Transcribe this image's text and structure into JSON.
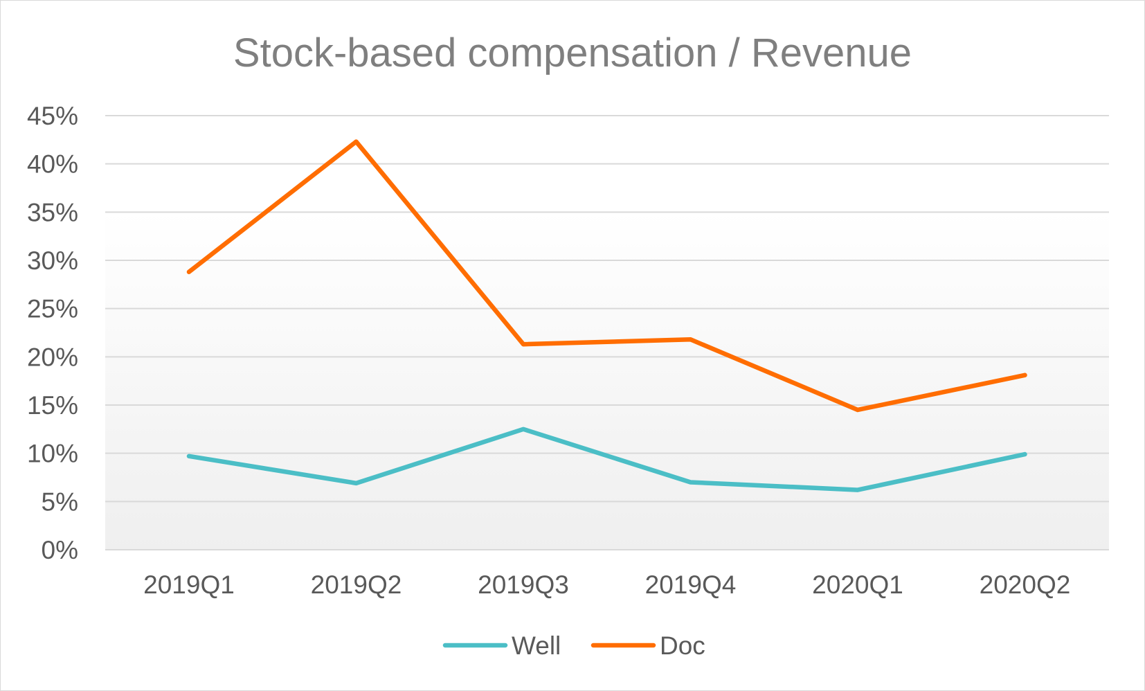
{
  "chart_data": {
    "type": "line",
    "title": "Stock-based compensation / Revenue",
    "categories": [
      "2019Q1",
      "2019Q2",
      "2019Q3",
      "2019Q4",
      "2020Q1",
      "2020Q2"
    ],
    "series": [
      {
        "name": "Well",
        "color": "#4bbec6",
        "values": [
          0.097,
          0.069,
          0.125,
          0.07,
          0.062,
          0.099
        ]
      },
      {
        "name": "Doc",
        "color": "#ff6d01",
        "values": [
          0.288,
          0.423,
          0.213,
          0.218,
          0.145,
          0.181
        ]
      }
    ],
    "ylim": [
      0,
      0.45
    ],
    "yticks": [
      0,
      0.05,
      0.1,
      0.15,
      0.2,
      0.25,
      0.3,
      0.35,
      0.4,
      0.45
    ],
    "ytick_labels": [
      "0%",
      "5%",
      "10%",
      "15%",
      "20%",
      "25%",
      "30%",
      "35%",
      "40%",
      "45%"
    ],
    "grid": true,
    "legend_position": "bottom"
  }
}
